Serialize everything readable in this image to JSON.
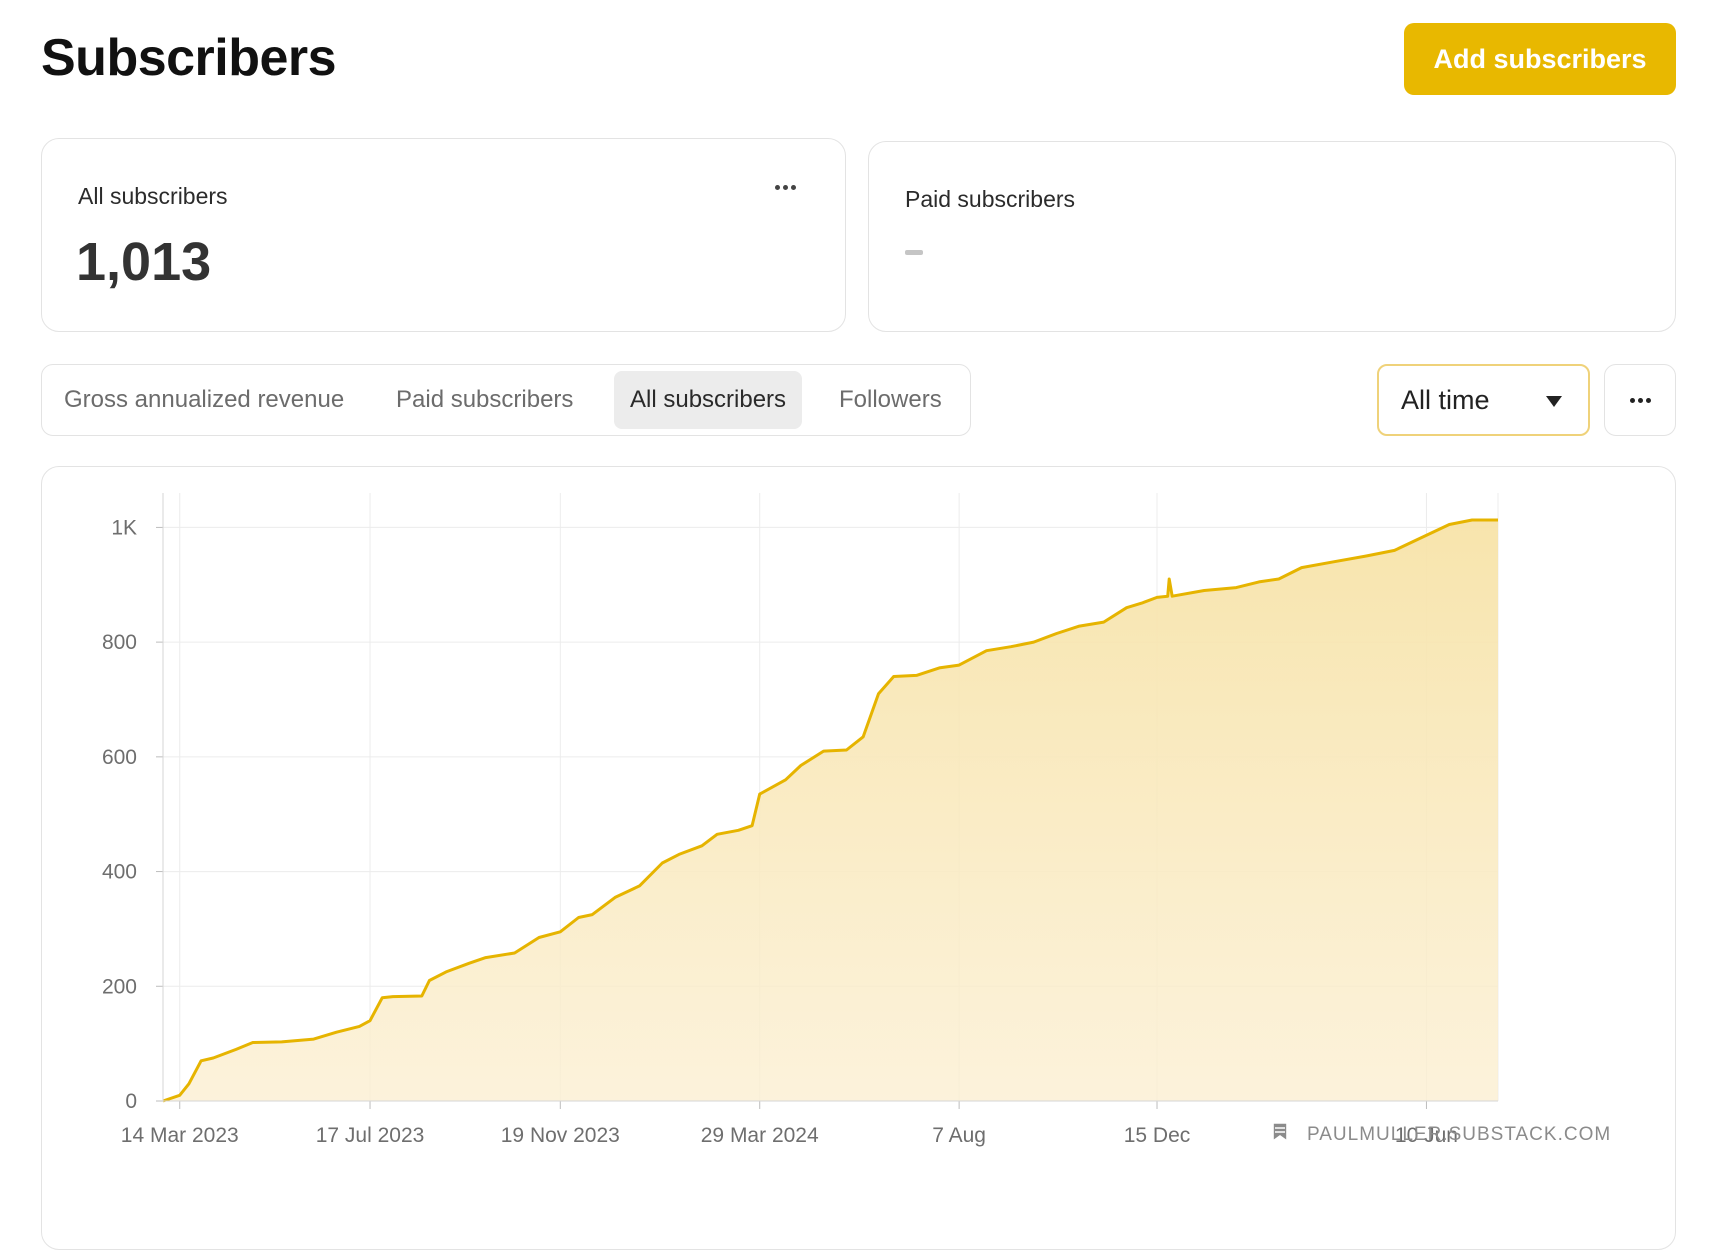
{
  "header": {
    "title": "Subscribers",
    "add_button": "Add subscribers"
  },
  "stats": {
    "all": {
      "label": "All subscribers",
      "value": "1,013"
    },
    "paid": {
      "label": "Paid subscribers",
      "value": "-"
    }
  },
  "tabs": [
    {
      "label": "Gross annualized revenue",
      "active": false
    },
    {
      "label": "Paid subscribers",
      "active": false
    },
    {
      "label": "All subscribers",
      "active": true
    },
    {
      "label": "Followers",
      "active": false
    }
  ],
  "range_select": {
    "value": "All time"
  },
  "watermark": "PAULMULLER.SUBSTACK.COM",
  "colors": {
    "accent": "#e8b800",
    "line": "#e6b400",
    "fill": "#f8e6b0"
  },
  "chart_data": {
    "type": "area",
    "title": "",
    "xlabel": "",
    "ylabel": "",
    "ylim": [
      0,
      1060
    ],
    "grid": true,
    "y_ticks": [
      0,
      200,
      400,
      600,
      800,
      1000
    ],
    "y_tick_labels": [
      "0",
      "200",
      "400",
      "600",
      "800",
      "1K"
    ],
    "x_ticks": [
      "2023-03-14",
      "2023-07-17",
      "2023-11-19",
      "2024-03-29",
      "2024-08-07",
      "2024-12-15",
      "2025-06-10"
    ],
    "x_tick_labels": [
      "14 Mar 2023",
      "17 Jul 2023",
      "19 Nov 2023",
      "29 Mar 2024",
      "7 Aug",
      "15 Dec",
      "10 Jun"
    ],
    "xlim": [
      "2023-03-03",
      "2025-07-27"
    ],
    "series": [
      {
        "x": [
          "2023-03-03",
          "2023-03-14",
          "2023-03-20",
          "2023-03-28",
          "2023-04-05",
          "2023-04-20",
          "2023-05-01",
          "2023-05-20",
          "2023-06-10",
          "2023-06-25",
          "2023-07-10",
          "2023-07-17",
          "2023-07-25",
          "2023-08-01",
          "2023-08-20",
          "2023-08-25",
          "2023-09-05",
          "2023-09-20",
          "2023-10-01",
          "2023-10-20",
          "2023-11-05",
          "2023-11-19",
          "2023-12-01",
          "2023-12-10",
          "2023-12-25",
          "2024-01-10",
          "2024-01-25",
          "2024-02-05",
          "2024-02-20",
          "2024-03-01",
          "2024-03-15",
          "2024-03-24",
          "2024-03-29",
          "2024-04-15",
          "2024-04-25",
          "2024-05-10",
          "2024-05-25",
          "2024-06-05",
          "2024-06-15",
          "2024-06-25",
          "2024-07-10",
          "2024-07-25",
          "2024-08-07",
          "2024-08-25",
          "2024-09-10",
          "2024-09-25",
          "2024-10-10",
          "2024-10-25",
          "2024-11-10",
          "2024-11-25",
          "2024-12-05",
          "2024-12-15",
          "2024-12-22",
          "2024-12-23",
          "2024-12-25",
          "2025-01-15",
          "2025-02-05",
          "2025-02-20",
          "2025-03-05",
          "2025-03-20",
          "2025-04-10",
          "2025-05-01",
          "2025-05-20",
          "2025-06-05",
          "2025-06-25",
          "2025-07-10",
          "2025-07-27"
        ],
        "values": [
          0,
          10,
          30,
          70,
          75,
          90,
          102,
          103,
          108,
          120,
          130,
          140,
          180,
          182,
          183,
          210,
          225,
          240,
          250,
          258,
          285,
          295,
          320,
          325,
          355,
          375,
          415,
          430,
          445,
          465,
          472,
          480,
          535,
          560,
          585,
          610,
          612,
          635,
          710,
          740,
          742,
          755,
          760,
          785,
          792,
          800,
          815,
          828,
          835,
          860,
          868,
          878,
          880,
          910,
          880,
          890,
          895,
          905,
          910,
          930,
          940,
          950,
          960,
          980,
          1005,
          1013,
          1013
        ]
      }
    ]
  }
}
